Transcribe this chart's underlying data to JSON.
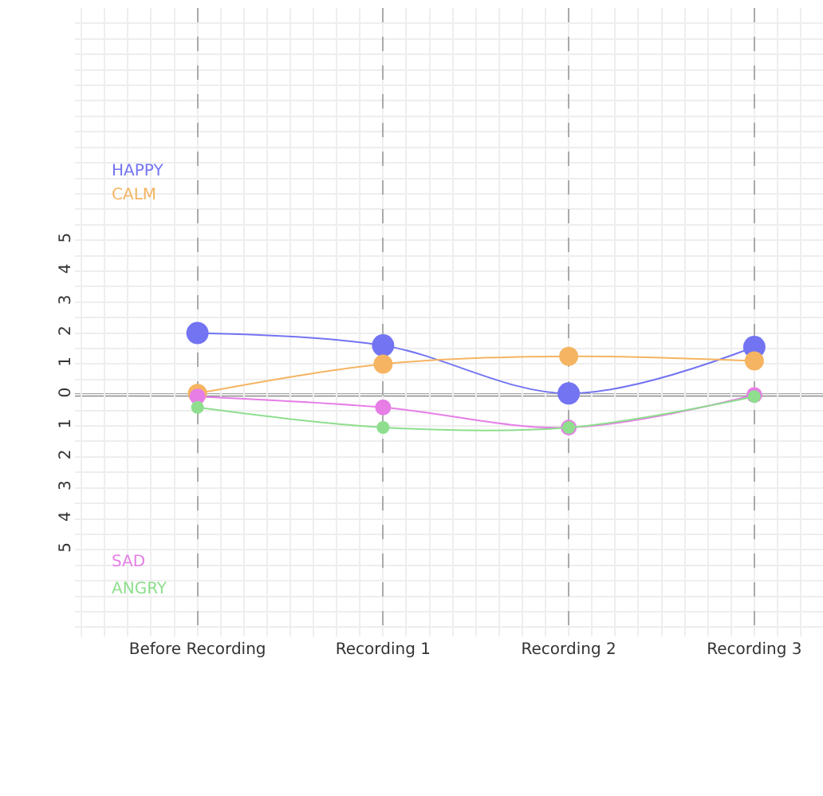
{
  "chart_data": {
    "type": "line",
    "categories": [
      "Before Recording",
      "Recording 1",
      "Recording 2",
      "Recording 3"
    ],
    "series": [
      {
        "name": "HAPPY",
        "color": "#7374f2",
        "values": [
          2.0,
          1.6,
          0.05,
          1.55
        ]
      },
      {
        "name": "CALM",
        "color": "#f5b462",
        "values": [
          0.05,
          1.0,
          1.25,
          1.1
        ]
      },
      {
        "name": "SAD",
        "color": "#e67ee6",
        "values": [
          -0.05,
          -0.4,
          -1.05,
          0.0
        ]
      },
      {
        "name": "ANGRY",
        "color": "#8ede8e",
        "values": [
          -0.4,
          -1.05,
          -1.05,
          -0.05
        ]
      }
    ],
    "ylim": [
      -7.8,
      12.5
    ],
    "yticks": [
      {
        "value": -5,
        "label": "5"
      },
      {
        "value": -4,
        "label": "4"
      },
      {
        "value": -3,
        "label": "3"
      },
      {
        "value": -2,
        "label": "2"
      },
      {
        "value": -1,
        "label": "1"
      },
      0,
      1,
      2,
      3,
      4,
      5
    ],
    "ref_lines": [
      {
        "axis": "y",
        "value": 0,
        "color": "#888888",
        "line_style": "solid"
      }
    ],
    "grid": true,
    "legend": "left",
    "marker": "circle",
    "line_style": "solid"
  }
}
